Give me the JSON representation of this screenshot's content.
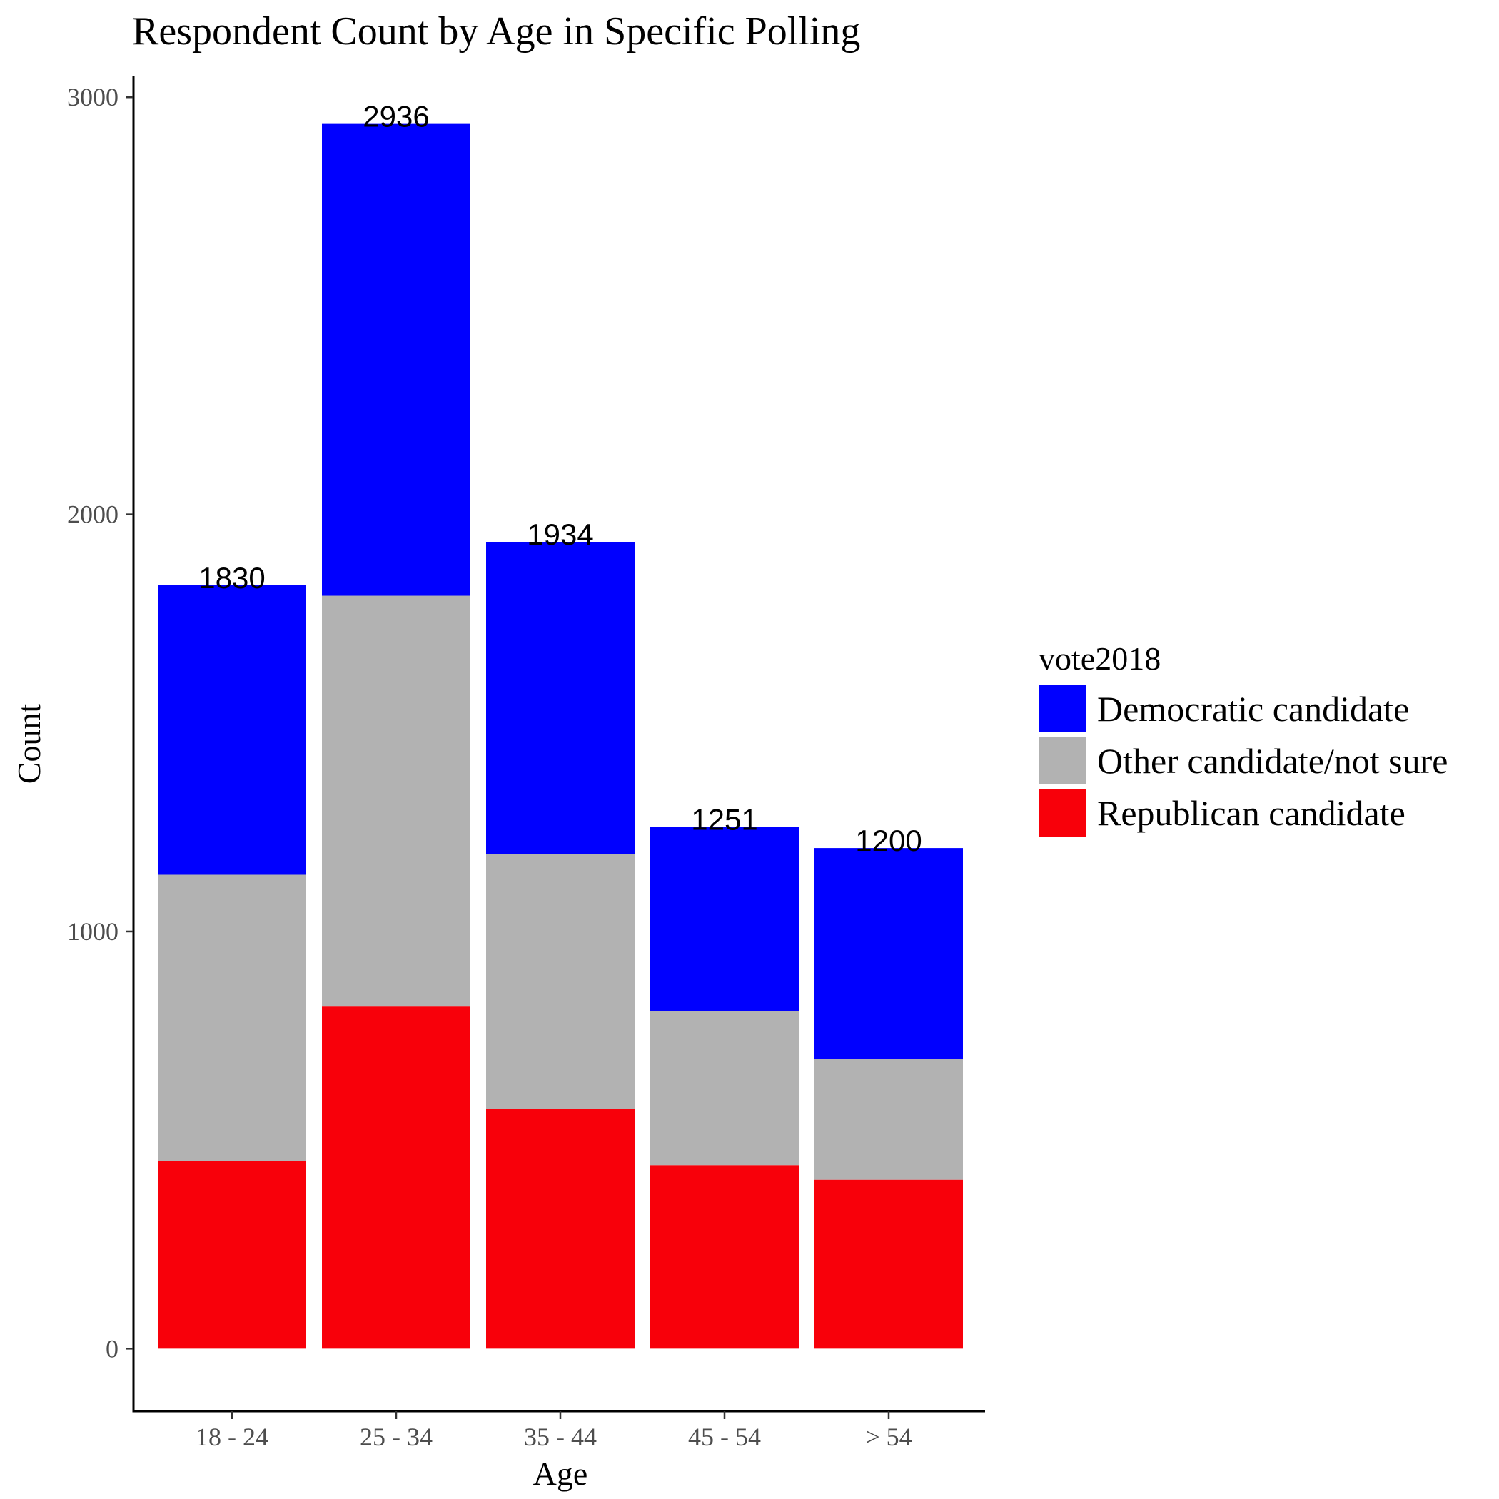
{
  "chart_data": {
    "type": "bar",
    "stacked": true,
    "title": "Respondent Count by Age in Specific Polling",
    "xlabel": "Age",
    "ylabel": "Count",
    "ylim": [
      -150,
      3050
    ],
    "yticks": [
      "0",
      "1000",
      "2000",
      "3000"
    ],
    "categories": [
      "18 - 24",
      "25 - 34",
      "35 - 44",
      "45 - 54",
      "> 54"
    ],
    "totals": [
      "1830",
      "2936",
      "1934",
      "1251",
      "1200"
    ],
    "series": [
      {
        "name": "Republican candidate",
        "color": "#F8000A",
        "values": [
          450,
          820,
          574,
          440,
          405
        ]
      },
      {
        "name": "Other candidate/not sure",
        "color": "#B2B2B2",
        "values": [
          686,
          985,
          612,
          369,
          289
        ]
      },
      {
        "name": "Democratic candidate",
        "color": "#0000FF",
        "values": [
          694,
          1131,
          748,
          442,
          506
        ]
      }
    ],
    "legend": {
      "title": "vote2018",
      "position": "right",
      "entries": [
        "Democratic candidate",
        "Other candidate/not sure",
        "Republican candidate"
      ],
      "colors": [
        "#0000FF",
        "#B2B2B2",
        "#F8000A"
      ]
    },
    "grid": false
  }
}
